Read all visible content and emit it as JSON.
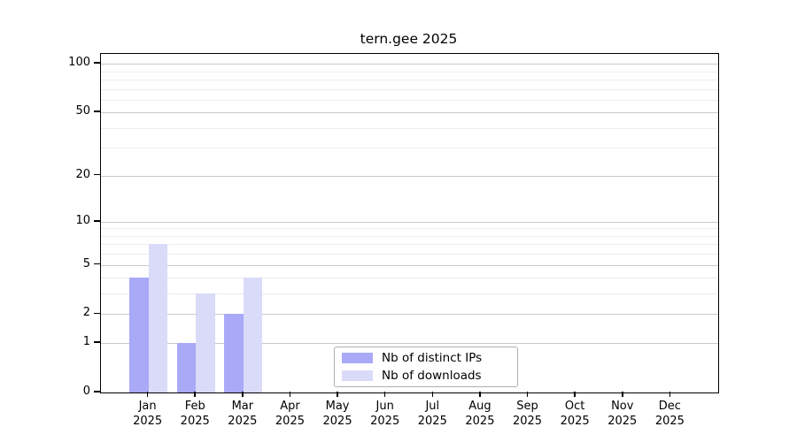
{
  "chart_data": {
    "type": "bar",
    "title": "tern.gee 2025",
    "categories": [
      "Jan",
      "Feb",
      "Mar",
      "Apr",
      "May",
      "Jun",
      "Jul",
      "Aug",
      "Sep",
      "Oct",
      "Nov",
      "Dec"
    ],
    "category_year": "2025",
    "series": [
      {
        "name": "Nb of distinct IPs",
        "color": "#a9a9f8",
        "values": [
          4,
          1,
          2,
          0,
          0,
          0,
          0,
          0,
          0,
          0,
          0,
          0
        ]
      },
      {
        "name": "Nb of downloads",
        "color": "#dadaf9",
        "values": [
          7,
          3,
          4,
          0,
          0,
          0,
          0,
          0,
          0,
          0,
          0,
          0
        ]
      }
    ],
    "yscale": "log1p",
    "ylim": [
      0,
      115
    ],
    "yticks": [
      0,
      1,
      2,
      5,
      10,
      20,
      50,
      100
    ],
    "minor_yticks": [
      3,
      4,
      6,
      7,
      8,
      9,
      30,
      40,
      60,
      70,
      80,
      90
    ],
    "grid": true,
    "legend_position": "lower center",
    "colors": {
      "major_grid": "#c9c9c9",
      "minor_grid": "#ececec",
      "axis": "#000000",
      "background": "#ffffff"
    }
  }
}
